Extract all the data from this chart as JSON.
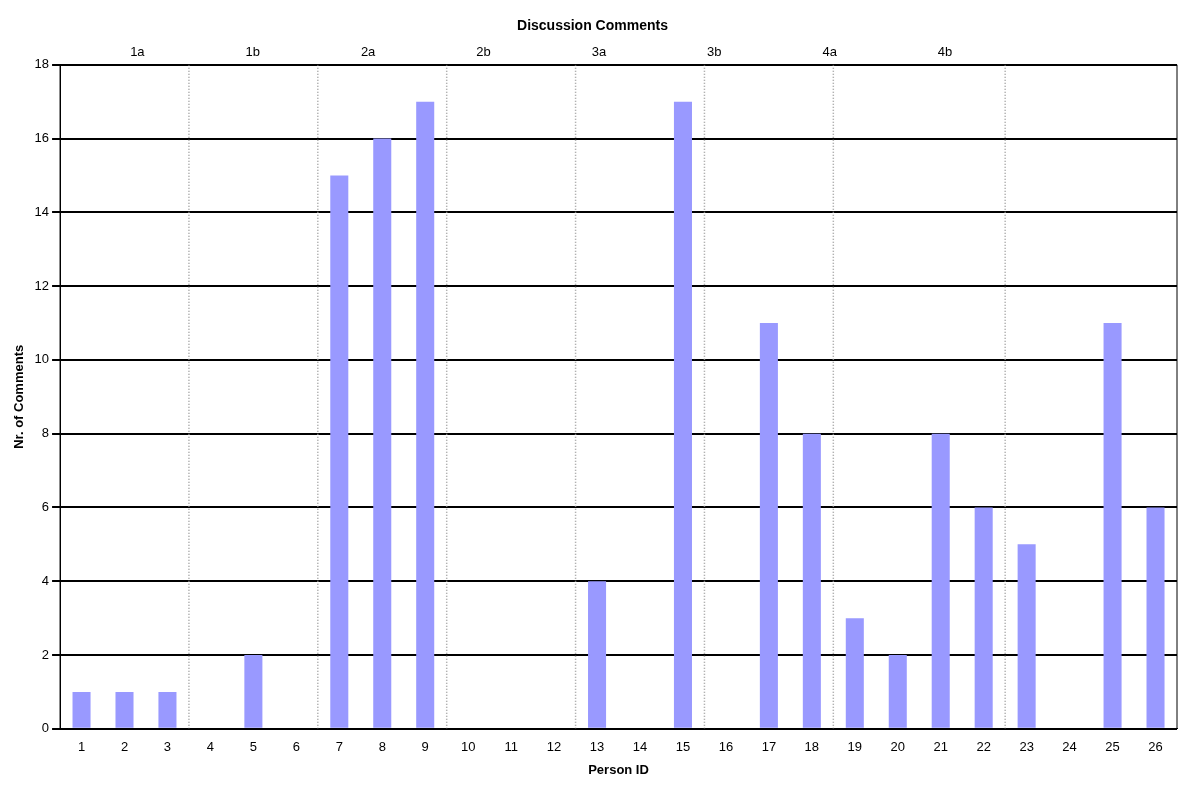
{
  "chart_data": {
    "type": "bar",
    "title": "Discussion Comments",
    "xlabel": "Person ID",
    "ylabel": "Nr. of Comments",
    "x": [
      1,
      2,
      3,
      4,
      5,
      6,
      7,
      8,
      9,
      10,
      11,
      12,
      13,
      14,
      15,
      16,
      17,
      18,
      19,
      20,
      21,
      22,
      23,
      24,
      25,
      26
    ],
    "values": [
      1,
      1,
      1,
      0,
      2,
      0,
      15,
      16,
      17,
      0,
      0,
      0,
      4,
      0,
      17,
      0,
      11,
      8,
      3,
      2,
      8,
      6,
      5,
      0,
      11,
      6
    ],
    "color": "#9999ff",
    "xlim": [
      0.5,
      26.5
    ],
    "xticks": [
      1,
      2,
      3,
      4,
      5,
      6,
      7,
      8,
      9,
      10,
      11,
      12,
      13,
      14,
      15,
      16,
      17,
      18,
      19,
      20,
      21,
      22,
      23,
      24,
      25,
      26
    ],
    "ylim": [
      0,
      18
    ],
    "yticks": [
      0,
      2,
      4,
      6,
      8,
      10,
      12,
      14,
      16,
      18
    ],
    "grid": "y",
    "legend": false,
    "ref_lines": [
      {
        "axis": "x",
        "value": 3.5,
        "color": "#999999",
        "line_style": "dotted"
      },
      {
        "axis": "x",
        "value": 6.5,
        "color": "#999999",
        "line_style": "dotted"
      },
      {
        "axis": "x",
        "value": 9.5,
        "color": "#999999",
        "line_style": "dotted"
      },
      {
        "axis": "x",
        "value": 12.5,
        "color": "#999999",
        "line_style": "dotted"
      },
      {
        "axis": "x",
        "value": 15.5,
        "color": "#999999",
        "line_style": "dotted"
      },
      {
        "axis": "x",
        "value": 18.5,
        "color": "#999999",
        "line_style": "dotted"
      },
      {
        "axis": "x",
        "value": 22.5,
        "color": "#999999",
        "line_style": "dotted"
      }
    ],
    "annotations": [
      "1a",
      "1b",
      "2a",
      "2b",
      "3a",
      "3b",
      "4a",
      "4b"
    ]
  }
}
